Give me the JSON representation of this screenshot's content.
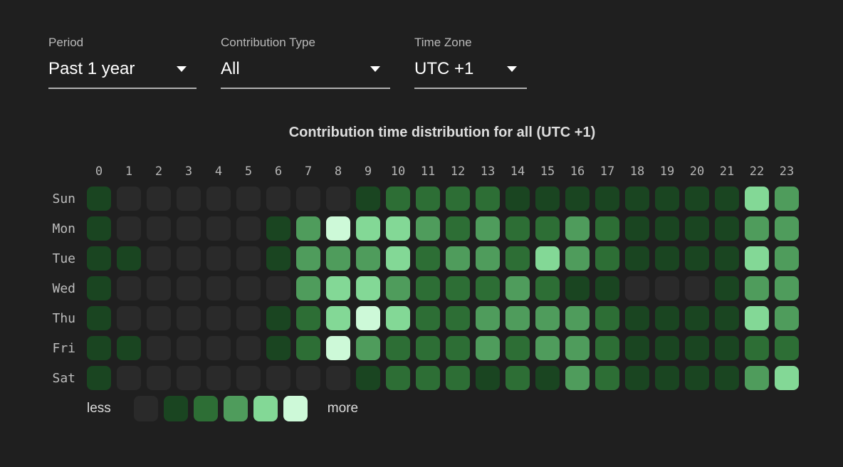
{
  "filters": {
    "period": {
      "label": "Period",
      "value": "Past 1 year"
    },
    "contribution_type": {
      "label": "Contribution Type",
      "value": "All"
    },
    "time_zone": {
      "label": "Time Zone",
      "value": "UTC +1"
    }
  },
  "chart_data": {
    "type": "heatmap",
    "title": "Contribution time distribution for all (UTC +1)",
    "x_categories": [
      "0",
      "1",
      "2",
      "3",
      "4",
      "5",
      "6",
      "7",
      "8",
      "9",
      "10",
      "11",
      "12",
      "13",
      "14",
      "15",
      "16",
      "17",
      "18",
      "19",
      "20",
      "21",
      "22",
      "23"
    ],
    "y_categories": [
      "Sun",
      "Mon",
      "Tue",
      "Wed",
      "Thu",
      "Fri",
      "Sat"
    ],
    "value_meaning": "contribution intensity level, 0 = less … 5 = more",
    "values": [
      [
        1,
        0,
        0,
        0,
        0,
        0,
        0,
        0,
        0,
        1,
        2,
        2,
        2,
        2,
        1,
        1,
        1,
        1,
        1,
        1,
        1,
        1,
        4,
        3
      ],
      [
        1,
        0,
        0,
        0,
        0,
        0,
        1,
        3,
        5,
        4,
        4,
        3,
        2,
        3,
        2,
        2,
        3,
        2,
        1,
        1,
        1,
        1,
        3,
        3
      ],
      [
        1,
        1,
        0,
        0,
        0,
        0,
        1,
        3,
        3,
        3,
        4,
        2,
        3,
        3,
        2,
        4,
        3,
        2,
        1,
        1,
        1,
        1,
        4,
        3
      ],
      [
        1,
        0,
        0,
        0,
        0,
        0,
        0,
        3,
        4,
        4,
        3,
        2,
        2,
        2,
        3,
        2,
        1,
        1,
        0,
        0,
        0,
        1,
        3,
        3
      ],
      [
        1,
        0,
        0,
        0,
        0,
        0,
        1,
        2,
        4,
        5,
        4,
        2,
        2,
        3,
        3,
        3,
        3,
        2,
        1,
        1,
        1,
        1,
        4,
        3
      ],
      [
        1,
        1,
        0,
        0,
        0,
        0,
        1,
        2,
        5,
        3,
        2,
        2,
        2,
        3,
        2,
        3,
        3,
        2,
        1,
        1,
        1,
        1,
        2,
        2
      ],
      [
        1,
        0,
        0,
        0,
        0,
        0,
        0,
        0,
        0,
        1,
        2,
        2,
        2,
        1,
        2,
        1,
        3,
        2,
        1,
        1,
        1,
        1,
        3,
        4
      ]
    ],
    "level_colors": [
      "#2a2a2a",
      "#1a4521",
      "#2d6e35",
      "#4f9c5c",
      "#83d896",
      "#cdf9d8"
    ],
    "legend": {
      "min_label": "less",
      "max_label": "more",
      "position": "bottom-left"
    },
    "grid_lines": false,
    "background_color": "#1f1f1f"
  }
}
